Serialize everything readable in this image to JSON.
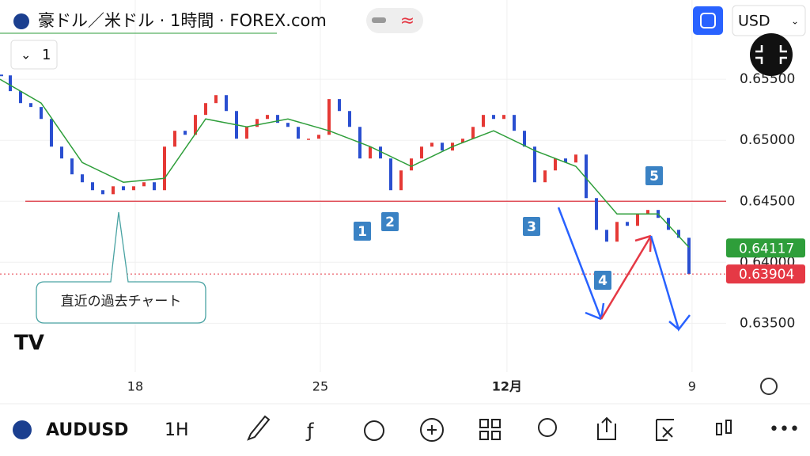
{
  "header": {
    "title": "豪ドル／米ドル · 1時間 · FOREX.com",
    "currency": "USD",
    "indicator_count": "1"
  },
  "chart_data": {
    "type": "candlestick",
    "up_color": "#e53935",
    "down_color": "#2a4fd0",
    "series": [
      {
        "values": [
          0.65532,
          0.65403,
          0.65305,
          0.65273,
          0.65175,
          0.64948,
          0.64851,
          0.64721,
          0.64656,
          0.64591,
          0.64558,
          0.64623,
          0.64591,
          0.64623,
          0.64656,
          0.64591,
          0.64948,
          0.65078,
          0.65045,
          0.65208,
          0.65305,
          0.6537,
          0.6524,
          0.65013,
          0.6511,
          0.65175,
          0.65208,
          0.65143,
          0.6511,
          0.65013,
          0.65013,
          0.65045,
          0.65338,
          0.6524,
          0.6511,
          0.64851,
          0.64948,
          0.64851,
          0.64591,
          0.64753,
          0.64851,
          0.64948,
          0.6498,
          0.64916,
          0.6498,
          0.65013,
          0.6511,
          0.65208,
          0.65175,
          0.65208,
          0.65078,
          0.64948,
          0.64656,
          0.64753,
          0.64851,
          0.64818,
          0.64883,
          0.64526,
          0.64266,
          0.64169,
          0.64331,
          0.64299,
          0.64396,
          0.64429,
          0.64364,
          0.64266,
          0.64201,
          0.63904
        ]
      },
      {
        "color": "#2e9e3a",
        "x": [
          0,
          4,
          8,
          12,
          16,
          20,
          24,
          28,
          32,
          36,
          40,
          44,
          48,
          52,
          56,
          60,
          64,
          67
        ],
        "values": [
          0.655,
          0.65305,
          0.64818,
          0.64656,
          0.64688,
          0.65175,
          0.6511,
          0.65175,
          0.65078,
          0.64948,
          0.64786,
          0.64948,
          0.65078,
          0.64916,
          0.64786,
          0.64396,
          0.64396,
          0.64123
        ]
      }
    ],
    "xlim": [
      0,
      70
    ],
    "xticks": [
      {
        "value": 13.15,
        "label": "18"
      },
      {
        "value": 31.15,
        "label": "25"
      },
      {
        "value": 49.3,
        "label": "12月"
      },
      {
        "value": 67.3,
        "label": "9"
      }
    ],
    "ylim": [
      0.631,
      0.6615
    ],
    "yticks": [
      {
        "value": 0.635,
        "label": "0.63500"
      },
      {
        "value": 0.64,
        "label": "0.64000"
      },
      {
        "value": 0.645,
        "label": "0.64500"
      },
      {
        "value": 0.65,
        "label": "0.65000"
      },
      {
        "value": 0.655,
        "label": "0.65500"
      }
    ],
    "hline": 0.645,
    "hline_color": "#e0505a",
    "price_labels": [
      {
        "value": 0.64117,
        "label": "0.64117",
        "color": "#2e9e3a"
      },
      {
        "value": 0.63904,
        "label": "0.63904",
        "color": "#e53945"
      }
    ],
    "markers": [
      "1",
      "2",
      "3",
      "4",
      "5"
    ],
    "callout": "直近の過去チャート"
  },
  "footer": {
    "symbol": "AUDUSD",
    "interval": "1H"
  }
}
